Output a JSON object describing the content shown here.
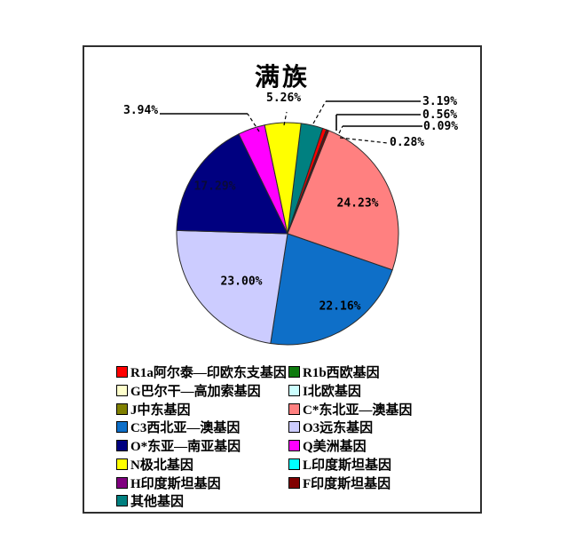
{
  "chart_data": {
    "type": "pie",
    "title": "满族",
    "unit": "%",
    "start_angle_deg": 7,
    "direction": "clockwise",
    "legend_position": "bottom",
    "slices": [
      {
        "label": "其他基因",
        "value": 3.19,
        "color": "#008080",
        "callout": "3.19%"
      },
      {
        "label": "R1a阿尔泰—印欧东支基因",
        "value": 0.56,
        "color": "#FF0000",
        "callout": "0.56%"
      },
      {
        "label": "I北欧基因",
        "value": 0.09,
        "color": "#CCFFFF",
        "callout": "0.09%"
      },
      {
        "label": "F印度斯坦基因",
        "value": 0.28,
        "color": "#800000",
        "callout": "0.28%"
      },
      {
        "label": "C*东北亚—澳基因",
        "value": 24.23,
        "color": "#FF8080",
        "callout": "24.23%"
      },
      {
        "label": "C3西北亚—澳基因",
        "value": 22.16,
        "color": "#0E6FC8",
        "callout": "22.16%"
      },
      {
        "label": "O3远东基因",
        "value": 23.0,
        "color": "#CCCCFF",
        "callout": "23.00%"
      },
      {
        "label": "O*东亚—南亚基因",
        "value": 17.29,
        "color": "#000080",
        "callout": "17.29%"
      },
      {
        "label": "Q美洲基因",
        "value": 3.94,
        "color": "#FF00FF",
        "callout": "3.94%"
      },
      {
        "label": "N极北基因",
        "value": 5.26,
        "color": "#FFFF00",
        "callout": "5.26%"
      }
    ],
    "legend": [
      {
        "label": "R1a阿尔泰—印欧东支基因",
        "color": "#FF0000"
      },
      {
        "label": "R1b西欧基因",
        "color": "#0E7A0E"
      },
      {
        "label": "G巴尔干—高加索基因",
        "color": "#FFFFCC"
      },
      {
        "label": "I北欧基因",
        "color": "#CCFFFF"
      },
      {
        "label": "J中东基因",
        "color": "#808000"
      },
      {
        "label": "C*东北亚—澳基因",
        "color": "#FF8080"
      },
      {
        "label": "C3西北亚—澳基因",
        "color": "#0E6FC8"
      },
      {
        "label": "O3远东基因",
        "color": "#CCCCFF"
      },
      {
        "label": "O*东亚—南亚基因",
        "color": "#000080"
      },
      {
        "label": "Q美洲基因",
        "color": "#FF00FF"
      },
      {
        "label": "N极北基因",
        "color": "#FFFF00"
      },
      {
        "label": "L印度斯坦基因",
        "color": "#00FFFF"
      },
      {
        "label": "H印度斯坦基因",
        "color": "#800080"
      },
      {
        "label": "F印度斯坦基因",
        "color": "#800000"
      },
      {
        "label": "其他基因",
        "color": "#008080"
      }
    ]
  }
}
